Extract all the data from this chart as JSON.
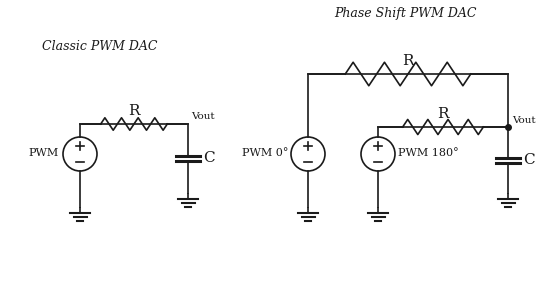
{
  "bg_color": "#ffffff",
  "line_color": "#1a1a1a",
  "title_left": "Classic PWM DAC",
  "title_right": "Phase Shift PWM DAC",
  "label_PWM": "PWM",
  "label_PWM0": "PWM 0°",
  "label_PWM180": "PWM 180°",
  "label_Vout": "Vout",
  "label_R": "R",
  "label_C": "C",
  "font_title": 9,
  "font_label": 8,
  "font_component": 11
}
